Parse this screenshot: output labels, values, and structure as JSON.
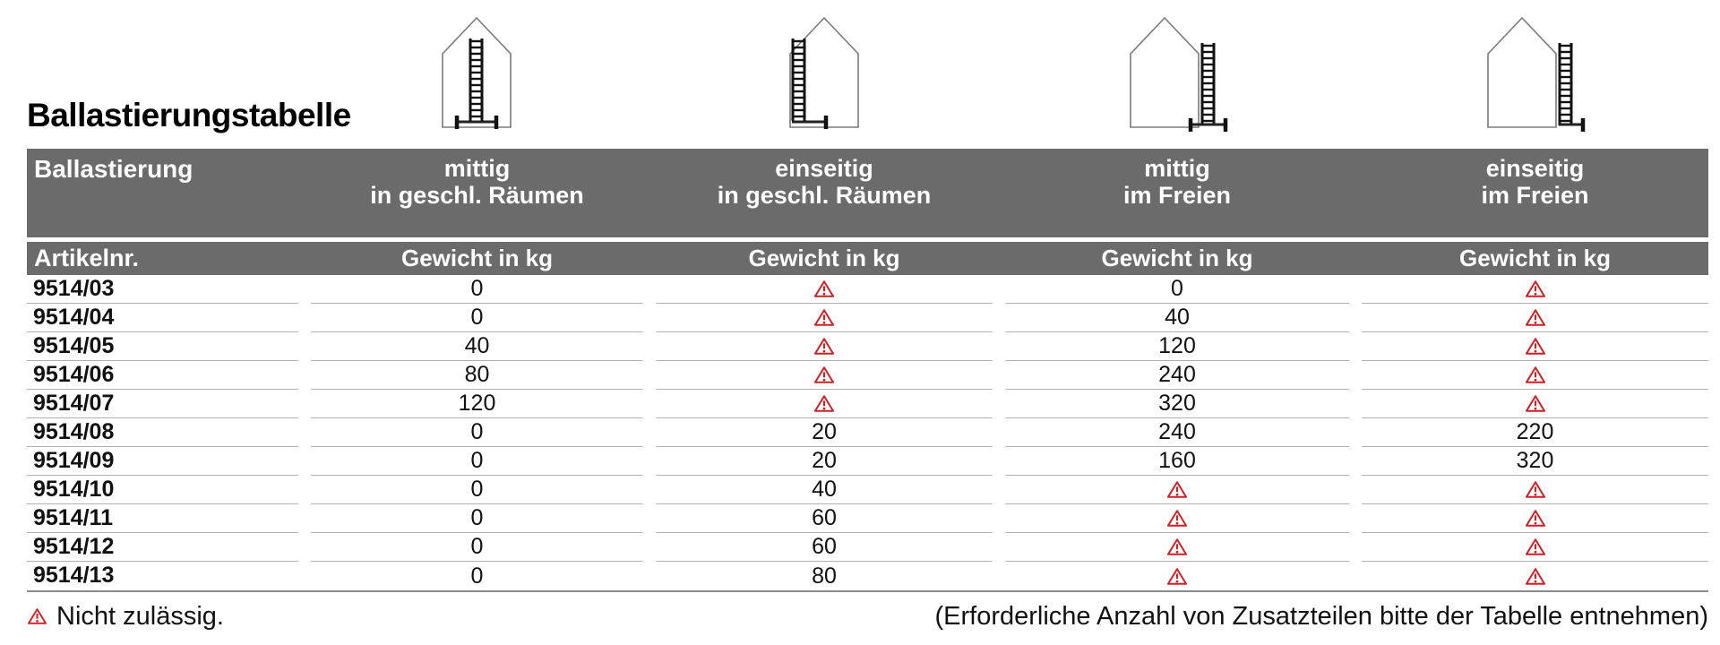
{
  "page": {
    "title": "Ballastierungstabelle"
  },
  "table": {
    "corner_label": "Ballastierung",
    "article_label": "Artikelnr.",
    "weight_header": "Gewicht in kg",
    "columns": [
      {
        "line1": "mittig",
        "line2": "in geschl. Räumen",
        "icon": "house-ladder-centered-indoor-icon"
      },
      {
        "line1": "einseitig",
        "line2": "in geschl. Räumen",
        "icon": "house-ladder-onesided-indoor-icon"
      },
      {
        "line1": "mittig",
        "line2": "im Freien",
        "icon": "house-ladder-centered-outdoor-icon"
      },
      {
        "line1": "einseitig",
        "line2": "im Freien",
        "icon": "house-ladder-onesided-outdoor-icon"
      }
    ],
    "not_permitted_symbol": "warning-triangle-icon",
    "rows": [
      {
        "article": "9514/03",
        "values": [
          "0",
          "warn",
          "0",
          "warn"
        ]
      },
      {
        "article": "9514/04",
        "values": [
          "0",
          "warn",
          "40",
          "warn"
        ]
      },
      {
        "article": "9514/05",
        "values": [
          "40",
          "warn",
          "120",
          "warn"
        ]
      },
      {
        "article": "9514/06",
        "values": [
          "80",
          "warn",
          "240",
          "warn"
        ]
      },
      {
        "article": "9514/07",
        "values": [
          "120",
          "warn",
          "320",
          "warn"
        ]
      },
      {
        "article": "9514/08",
        "values": [
          "0",
          "20",
          "240",
          "220"
        ]
      },
      {
        "article": "9514/09",
        "values": [
          "0",
          "20",
          "160",
          "320"
        ]
      },
      {
        "article": "9514/10",
        "values": [
          "0",
          "40",
          "warn",
          "warn"
        ]
      },
      {
        "article": "9514/11",
        "values": [
          "0",
          "60",
          "warn",
          "warn"
        ]
      },
      {
        "article": "9514/12",
        "values": [
          "0",
          "60",
          "warn",
          "warn"
        ]
      },
      {
        "article": "9514/13",
        "values": [
          "0",
          "80",
          "warn",
          "warn"
        ]
      }
    ]
  },
  "footer": {
    "legend": "Nicht zulässig.",
    "note": "(Erforderliche Anzahl von Zusatzteilen bitte der Tabelle entnehmen)"
  },
  "colors": {
    "header_gray": "#6b6b6b",
    "warning_red": "#cb2127",
    "row_line": "#b3b3b3",
    "bottom_line": "#8a8a8a"
  }
}
